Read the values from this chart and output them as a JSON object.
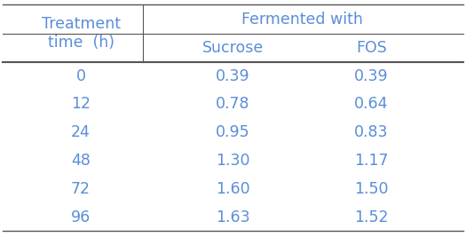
{
  "header_group": "Fermented with",
  "col1_header": "Treatment\ntime  (h)",
  "col2_header": "Sucrose",
  "col3_header": "FOS",
  "rows": [
    [
      "0",
      "0.39",
      "0.39"
    ],
    [
      "12",
      "0.78",
      "0.64"
    ],
    [
      "24",
      "0.95",
      "0.83"
    ],
    [
      "48",
      "1.30",
      "1.17"
    ],
    [
      "72",
      "1.60",
      "1.50"
    ],
    [
      "96",
      "1.63",
      "1.52"
    ]
  ],
  "text_color": "#5b8dd9",
  "background_color": "#ffffff",
  "font_size": 12.5,
  "header_font_size": 12.5,
  "line_color": "#555555",
  "fig_width": 5.25,
  "fig_height": 2.76
}
